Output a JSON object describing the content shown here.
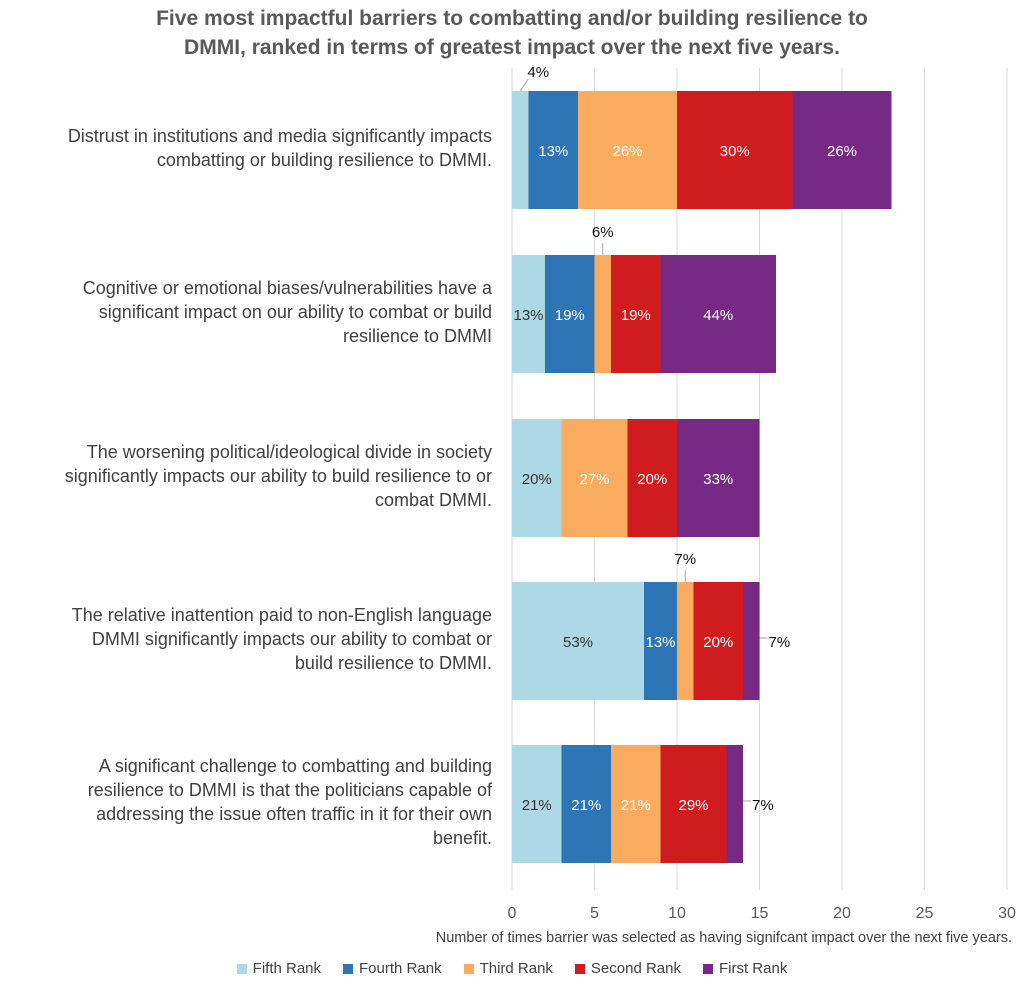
{
  "chart_data": {
    "type": "bar",
    "orientation": "horizontal",
    "stacked": true,
    "title_lines": [
      "Five most impactful barriers to combatting and/or building resilience to",
      "DMMI, ranked in terms of greatest impact over the next five years."
    ],
    "xlabel": "Number of times barrier was selected as having signifcant impact over the next five years.",
    "xlim": [
      0,
      30
    ],
    "xticks": [
      "0",
      "5",
      "10",
      "15",
      "20",
      "25",
      "30"
    ],
    "grid": true,
    "legend_position": "bottom",
    "categories": [
      {
        "lines": [
          "Distrust in institutions and media significantly impacts",
          "combatting or building resilience to DMMI."
        ]
      },
      {
        "lines": [
          "Cognitive or emotional biases/vulnerabilities have a",
          "significant impact on our ability to combat or build",
          "resilience to DMMI"
        ]
      },
      {
        "lines": [
          "The worsening political/ideological divide in society",
          "significantly impacts our ability to build resilience to or",
          "combat DMMI."
        ]
      },
      {
        "lines": [
          "The relative inattention paid to non-English language",
          "DMMI significantly impacts our ability to combat or",
          "build resilience to DMMI."
        ]
      },
      {
        "lines": [
          "A significant challenge to combatting and building",
          "resilience to DMMI is that the politicians capable of",
          "addressing the issue often traffic in it for their own",
          "benefit."
        ]
      }
    ],
    "series": [
      {
        "name": "Fifth Rank",
        "color": "#add8e6",
        "label_color": "#333333",
        "values": [
          1,
          2,
          3,
          8,
          3
        ],
        "labels": [
          "4%",
          "13%",
          "20%",
          "53%",
          "21%"
        ],
        "label_outside": [
          true,
          false,
          false,
          false,
          false
        ]
      },
      {
        "name": "Fourth Rank",
        "color": "#2e75b6",
        "label_color": "#ffffff",
        "values": [
          3,
          3,
          0,
          2,
          3
        ],
        "labels": [
          "13%",
          "19%",
          "",
          "13%",
          "21%"
        ],
        "label_outside": [
          false,
          false,
          false,
          false,
          false
        ]
      },
      {
        "name": "Third Rank",
        "color": "#f9ab5f",
        "label_color": "#ffffff",
        "values": [
          6,
          1,
          4,
          1,
          3
        ],
        "labels": [
          "26%",
          "6%",
          "27%",
          "7%",
          "21%"
        ],
        "label_outside": [
          false,
          true,
          false,
          true,
          false
        ]
      },
      {
        "name": "Second Rank",
        "color": "#d01c1f",
        "label_color": "#ffffff",
        "values": [
          7,
          3,
          3,
          3,
          4
        ],
        "labels": [
          "30%",
          "19%",
          "20%",
          "20%",
          "29%"
        ],
        "label_outside": [
          false,
          false,
          false,
          false,
          false
        ]
      },
      {
        "name": "First Rank",
        "color": "#762a83",
        "label_color": "#ffffff",
        "values": [
          6,
          7,
          5,
          1,
          1
        ],
        "labels": [
          "26%",
          "44%",
          "33%",
          "7%",
          "7%"
        ],
        "label_outside": [
          false,
          false,
          false,
          true,
          true
        ]
      }
    ]
  }
}
